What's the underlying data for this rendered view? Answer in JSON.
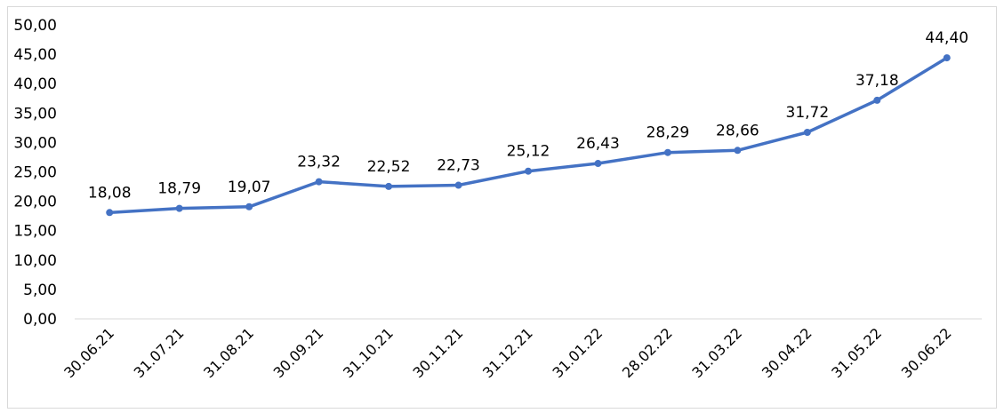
{
  "chart_data": {
    "type": "line",
    "title": "",
    "xlabel": "",
    "ylabel": "",
    "categories": [
      "30.06.21",
      "31.07.21",
      "31.08.21",
      "30.09.21",
      "31.10.21",
      "30.11.21",
      "31.12.21",
      "31.01.22",
      "28.02.22",
      "31.03.22",
      "30.04.22",
      "31.05.22",
      "30.06.22"
    ],
    "series": [
      {
        "values": [
          18.08,
          18.79,
          19.07,
          23.32,
          22.52,
          22.73,
          25.12,
          26.43,
          28.29,
          28.66,
          31.72,
          37.18,
          44.4
        ],
        "labels": [
          "18,08",
          "18,79",
          "19,07",
          "23,32",
          "22,52",
          "22,73",
          "25,12",
          "26,43",
          "28,29",
          "28,66",
          "31,72",
          "37,18",
          "44,40"
        ],
        "color": "#4472c4"
      }
    ],
    "ylim": [
      0,
      50
    ],
    "yticks": [
      0,
      5,
      10,
      15,
      20,
      25,
      30,
      35,
      40,
      45,
      50
    ],
    "ytick_labels": [
      "0,00",
      "5,00",
      "10,00",
      "15,00",
      "20,00",
      "25,00",
      "30,00",
      "35,00",
      "40,00",
      "45,00",
      "50,00"
    ],
    "grid": false,
    "legend": "none",
    "axis_color": "#d9d9d9"
  }
}
